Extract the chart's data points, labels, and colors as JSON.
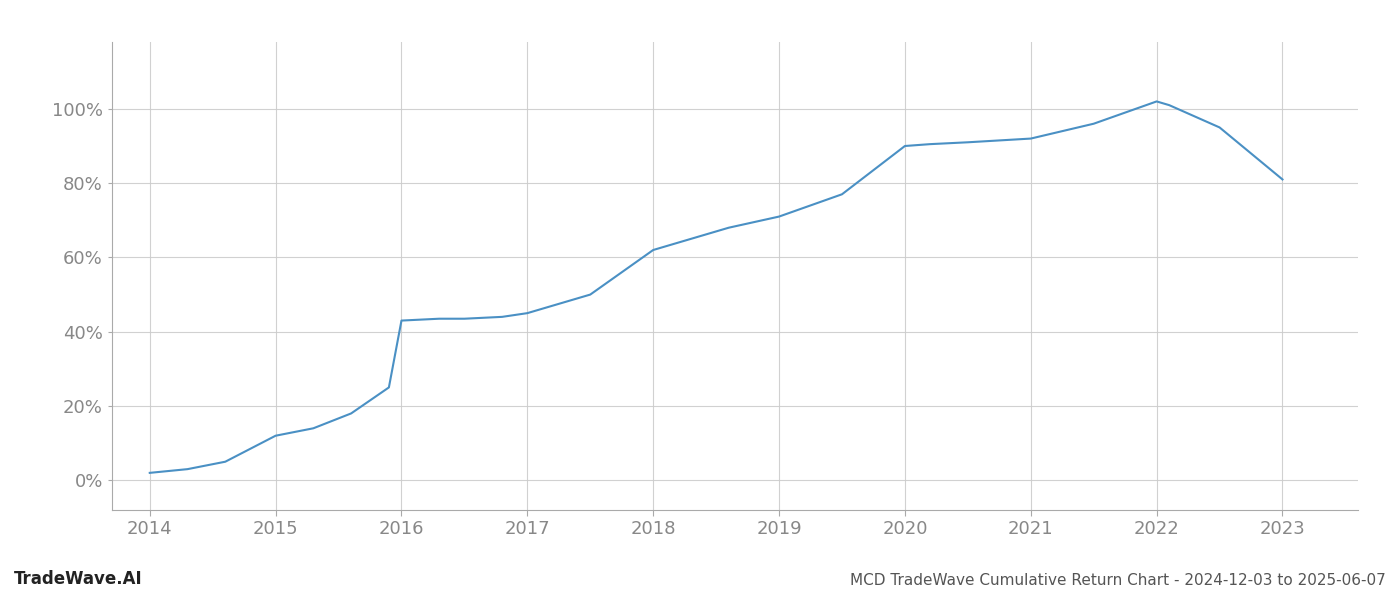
{
  "x_values": [
    2014,
    2014.3,
    2014.6,
    2015.0,
    2015.3,
    2015.6,
    2015.9,
    2016.0,
    2016.3,
    2016.5,
    2016.8,
    2017.0,
    2017.5,
    2018.0,
    2018.3,
    2018.6,
    2019.0,
    2019.5,
    2020.0,
    2020.2,
    2020.5,
    2021.0,
    2021.5,
    2022.0,
    2022.1,
    2022.5,
    2023.0
  ],
  "y_values": [
    2,
    3,
    5,
    12,
    14,
    18,
    25,
    43,
    43.5,
    43.5,
    44,
    45,
    50,
    62,
    65,
    68,
    71,
    77,
    90,
    90.5,
    91,
    92,
    96,
    102,
    101,
    95,
    81
  ],
  "line_color": "#4a90c4",
  "line_width": 1.5,
  "title": "MCD TradeWave Cumulative Return Chart - 2024-12-03 to 2025-06-07",
  "watermark": "TradeWave.AI",
  "x_ticks": [
    2014,
    2015,
    2016,
    2017,
    2018,
    2019,
    2020,
    2021,
    2022,
    2023
  ],
  "y_ticks": [
    0,
    20,
    40,
    60,
    80,
    100
  ],
  "y_labels": [
    "0%",
    "20%",
    "40%",
    "60%",
    "80%",
    "100%"
  ],
  "xlim": [
    2013.7,
    2023.6
  ],
  "ylim": [
    -8,
    118
  ],
  "background_color": "#ffffff",
  "grid_color": "#cccccc",
  "title_fontsize": 11,
  "watermark_fontsize": 12,
  "tick_fontsize": 13
}
